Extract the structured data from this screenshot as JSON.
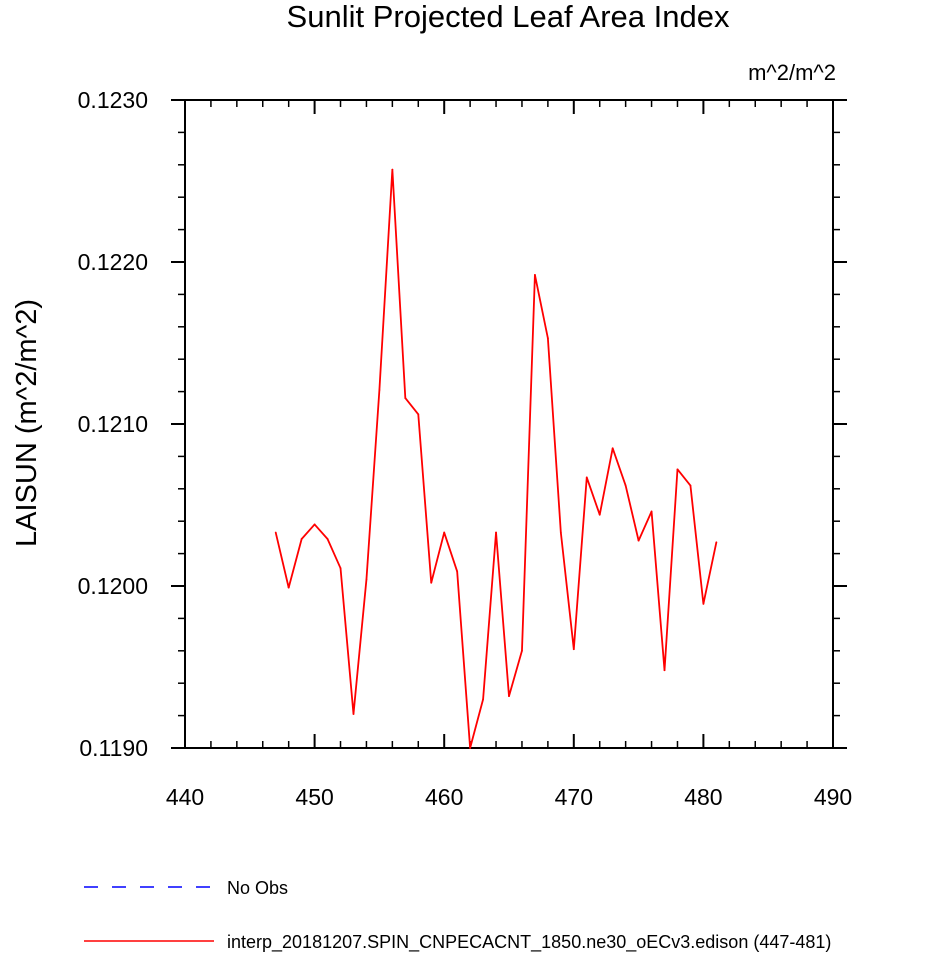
{
  "chart_data": {
    "type": "line",
    "title": "Sunlit Projected Leaf Area Index",
    "units_label": "m^2/m^2",
    "ylabel": "LAISUN  (m^2/m^2)",
    "xlabel": "",
    "xlim": [
      440,
      490
    ],
    "ylim": [
      0.119,
      0.123
    ],
    "xticks": [
      "440",
      "450",
      "460",
      "470",
      "480",
      "490"
    ],
    "yticks": [
      "0.1190",
      "0.1200",
      "0.1210",
      "0.1220",
      "0.1230"
    ],
    "grid": false,
    "legend_placement": "bottom",
    "series": [
      {
        "name": "No Obs",
        "color": "#0000ff",
        "style": "dashed",
        "x": [],
        "y": []
      },
      {
        "name": "interp_20181207.SPIN_CNPECACNT_1850.ne30_oECv3.edison (447-481)",
        "color": "#ff0000",
        "style": "solid",
        "x": [
          447,
          448,
          449,
          450,
          451,
          452,
          453,
          454,
          455,
          456,
          457,
          458,
          459,
          460,
          461,
          462,
          463,
          464,
          465,
          466,
          467,
          468,
          469,
          470,
          471,
          472,
          473,
          474,
          475,
          476,
          477,
          478,
          479,
          480,
          481
        ],
        "y": [
          0.12033,
          0.11999,
          0.12029,
          0.12038,
          0.12029,
          0.12011,
          0.11921,
          0.12004,
          0.12121,
          0.12257,
          0.12116,
          0.12106,
          0.12002,
          0.12033,
          0.12009,
          0.119,
          0.1193,
          0.12033,
          0.11932,
          0.1196,
          0.12192,
          0.12153,
          0.12033,
          0.11961,
          0.12067,
          0.12044,
          0.12085,
          0.12062,
          0.12028,
          0.12046,
          0.11948,
          0.12072,
          0.12062,
          0.11989,
          0.12027
        ]
      }
    ]
  }
}
